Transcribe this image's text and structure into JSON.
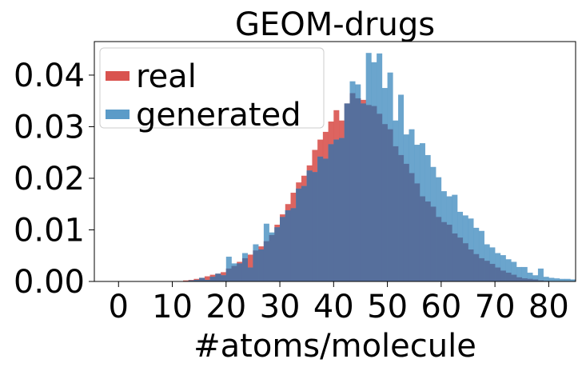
{
  "chart_data": {
    "type": "histogram",
    "title": "GEOM-drugs",
    "xlabel": "#atoms/molecule",
    "ylabel": "",
    "xlim": [
      -4.5,
      85
    ],
    "ylim": [
      0,
      0.0465
    ],
    "xticks": [
      "0",
      "10",
      "20",
      "30",
      "40",
      "50",
      "60",
      "70",
      "80"
    ],
    "yticks": [
      "0.00",
      "0.01",
      "0.02",
      "0.03",
      "0.04"
    ],
    "bin_width": 1,
    "bin_start": 0,
    "legend_position": "top-left",
    "series": [
      {
        "name": "real",
        "color": "#d9534f",
        "values": [
          0,
          0,
          0,
          0,
          0,
          0,
          0,
          0,
          0,
          0,
          0,
          0,
          0.0002,
          0.0003,
          0.0005,
          0.0007,
          0.001,
          0.0013,
          0.0015,
          0.0018,
          0.0025,
          0.003,
          0.0038,
          0.0045,
          0.0052,
          0.006,
          0.0068,
          0.0078,
          0.009,
          0.011,
          0.013,
          0.015,
          0.0172,
          0.0192,
          0.0205,
          0.0225,
          0.0255,
          0.0275,
          0.029,
          0.031,
          0.0332,
          0.0312,
          0.0345,
          0.0365,
          0.0355,
          0.0352,
          0.0342,
          0.034,
          0.0325,
          0.0305,
          0.0295,
          0.0262,
          0.0245,
          0.0228,
          0.021,
          0.019,
          0.0165,
          0.0155,
          0.0145,
          0.0125,
          0.0115,
          0.011,
          0.0093,
          0.0085,
          0.0074,
          0.0062,
          0.0053,
          0.0045,
          0.004,
          0.0034,
          0.0027,
          0.0021,
          0.0017,
          0.0013,
          0.0008,
          0.0006,
          0.0005,
          0.0004,
          0.0002,
          0.0001,
          0
        ]
      },
      {
        "name": "generated",
        "color": "#5b9bc8",
        "values": [
          0,
          0,
          0,
          0,
          0,
          0,
          0,
          0,
          0,
          0,
          0,
          0,
          0,
          0.0002,
          0.0003,
          0.0007,
          0.0003,
          0.0009,
          0.0015,
          0.0012,
          0.0048,
          0.0035,
          0.0035,
          0.0055,
          0.0027,
          0.0072,
          0.0062,
          0.0112,
          0.0095,
          0.0105,
          0.0125,
          0.0138,
          0.0142,
          0.018,
          0.0185,
          0.0215,
          0.0212,
          0.0242,
          0.0238,
          0.0266,
          0.0275,
          0.0278,
          0.0345,
          0.0388,
          0.0382,
          0.0345,
          0.0443,
          0.0425,
          0.0442,
          0.0375,
          0.0405,
          0.0312,
          0.0362,
          0.0285,
          0.0295,
          0.0265,
          0.0268,
          0.0245,
          0.0222,
          0.0202,
          0.0175,
          0.0165,
          0.0168,
          0.0135,
          0.0128,
          0.0122,
          0.0104,
          0.0098,
          0.0072,
          0.0066,
          0.0055,
          0.0051,
          0.0043,
          0.0038,
          0.0028,
          0.0028,
          0.0017,
          0.0012,
          0.0025,
          0.0009,
          0.0007,
          0.0006,
          0.0005,
          0.0005,
          0.0004
        ]
      }
    ]
  }
}
